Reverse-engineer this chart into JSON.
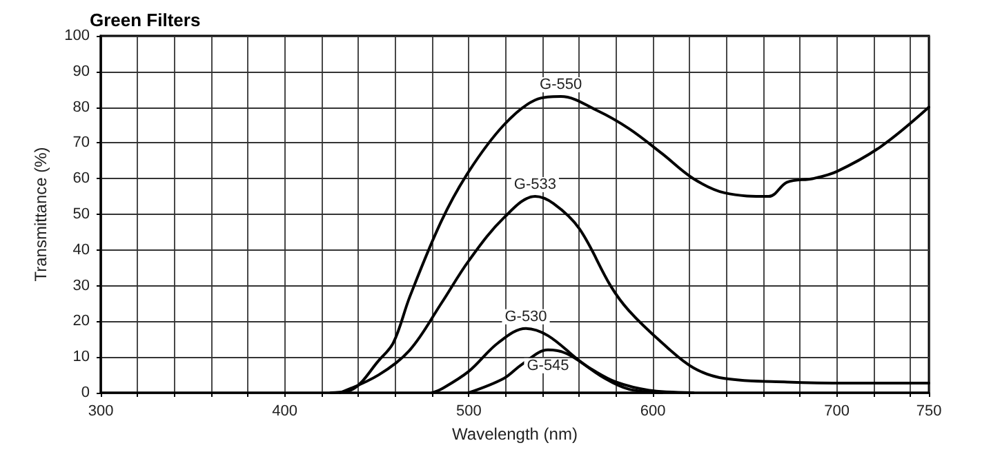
{
  "chart_data": {
    "type": "line",
    "title": "Green Filters",
    "xlabel": "Wavelength (nm)",
    "ylabel": "Transmittance (%)",
    "xlim": [
      300,
      750
    ],
    "ylim": [
      0,
      100
    ],
    "xticks": [
      300,
      {
        "value": 320,
        "label": null
      },
      {
        "value": 340,
        "label": null
      },
      {
        "value": 360,
        "label": null
      },
      {
        "value": 380,
        "label": null
      },
      400,
      {
        "value": 420,
        "label": null
      },
      {
        "value": 440,
        "label": null
      },
      {
        "value": 460,
        "label": null
      },
      {
        "value": 480,
        "label": null
      },
      500,
      {
        "value": 520,
        "label": null
      },
      {
        "value": 540,
        "label": null
      },
      {
        "value": 560,
        "label": null
      },
      {
        "value": 580,
        "label": null
      },
      600,
      {
        "value": 620,
        "label": null
      },
      {
        "value": 640,
        "label": null
      },
      {
        "value": 660,
        "label": null
      },
      {
        "value": 680,
        "label": null
      },
      700,
      {
        "value": 720,
        "label": null
      },
      {
        "value": 740,
        "label": null
      },
      750
    ],
    "yticks": [
      0,
      10,
      20,
      30,
      40,
      50,
      60,
      70,
      80,
      90,
      100
    ],
    "grid": true,
    "marker": "none",
    "line_style": "solid",
    "series": [
      {
        "name": "G-550",
        "color": "#000000",
        "x": [
          425,
          437,
          451,
          459,
          468,
          485,
          500,
          519,
          536,
          550,
          570,
          587,
          605,
          622,
          639,
          663,
          673,
          687,
          700,
          724,
          750
        ],
        "values": [
          0,
          1,
          9,
          14,
          27,
          48,
          62,
          75,
          82,
          83,
          79,
          74,
          67,
          60,
          56,
          55,
          59,
          60,
          62,
          69,
          80
        ]
      },
      {
        "name": "G-533",
        "color": "#000000",
        "x": [
          430,
          451,
          468,
          485,
          500,
          519,
          536,
          546,
          560,
          577,
          587,
          605,
          622,
          639,
          673,
          707,
          750
        ],
        "values": [
          0,
          5,
          12,
          25,
          37,
          49,
          55,
          53,
          46,
          30,
          23,
          14,
          7,
          4,
          3,
          2.7,
          2.7
        ]
      },
      {
        "name": "G-530",
        "color": "#000000",
        "x": [
          480,
          485,
          500,
          516,
          531,
          543,
          560,
          574,
          587,
          605
        ],
        "values": [
          0,
          1,
          6,
          14,
          18,
          16,
          9,
          4,
          1,
          0
        ]
      },
      {
        "name": "G-545",
        "color": "#000000",
        "x": [
          500,
          519,
          529,
          543,
          553,
          567,
          580,
          598,
          622
        ],
        "values": [
          0,
          4,
          8,
          12,
          11,
          6.5,
          3,
          0.7,
          0
        ]
      }
    ]
  }
}
